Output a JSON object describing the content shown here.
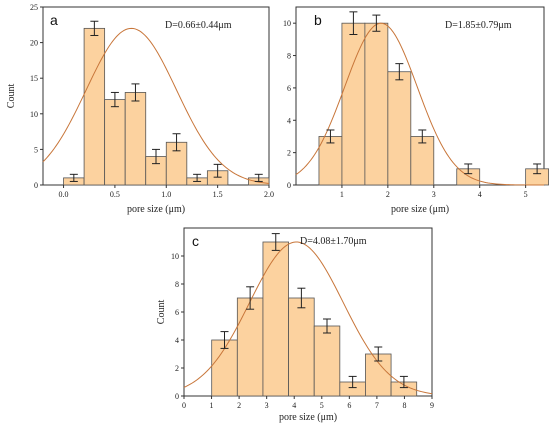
{
  "chart_data": [
    {
      "type": "bar",
      "panel_label": "a",
      "annotation": "D=0.66±0.44μm",
      "xlabel": "pore size (μm)",
      "ylabel": "Count",
      "xlim": [
        -0.2,
        2.0
      ],
      "ylim": [
        0,
        25
      ],
      "xticks": [
        0.0,
        0.5,
        1.0,
        1.5,
        2.0
      ],
      "xtick_labels": [
        "0.0",
        "0.5",
        "1.0",
        "1.5",
        "2.0"
      ],
      "yticks": [
        0,
        5,
        10,
        15,
        20,
        25
      ],
      "bin_width": 0.2,
      "bin_centers": [
        0.1,
        0.3,
        0.5,
        0.7,
        0.9,
        1.1,
        1.3,
        1.5,
        1.9
      ],
      "values": [
        1,
        22,
        12,
        13,
        4,
        6,
        1,
        2,
        1
      ],
      "errors": [
        0.5,
        1.0,
        1.0,
        1.2,
        1.0,
        1.2,
        0.5,
        0.9,
        0.5
      ],
      "fit": {
        "type": "gaussian",
        "mean": 0.66,
        "sd": 0.44,
        "peak": 22
      },
      "colors": {
        "bar": "#fcd29f",
        "bar_edge": "#555555",
        "fit": "#c8763a"
      }
    },
    {
      "type": "bar",
      "panel_label": "b",
      "annotation": "D=1.85±0.79μm",
      "xlabel": "pore size (μm)",
      "ylabel": "",
      "xlim": [
        0,
        5.4
      ],
      "ylim": [
        0,
        11
      ],
      "xticks": [
        1,
        2,
        3,
        4,
        5
      ],
      "xtick_labels": [
        "1",
        "2",
        "3",
        "4",
        "5"
      ],
      "yticks": [
        0,
        2,
        4,
        6,
        8,
        10
      ],
      "bin_width": 0.5,
      "bin_centers": [
        0.75,
        1.25,
        1.75,
        2.25,
        2.75,
        3.75,
        5.25
      ],
      "values": [
        3,
        10,
        10,
        7,
        3,
        1,
        1
      ],
      "errors": [
        0.4,
        0.7,
        0.5,
        0.5,
        0.4,
        0.3,
        0.3
      ],
      "fit": {
        "type": "gaussian",
        "mean": 1.85,
        "sd": 0.79,
        "peak": 10
      },
      "colors": {
        "bar": "#fcd29f",
        "bar_edge": "#555555",
        "fit": "#c8763a"
      }
    },
    {
      "type": "bar",
      "panel_label": "c",
      "annotation": "D=4.08±1.70μm",
      "xlabel": "pore size (μm)",
      "ylabel": "Count",
      "xlim": [
        0,
        9
      ],
      "ylim": [
        0,
        12
      ],
      "xticks": [
        0,
        1,
        2,
        3,
        4,
        5,
        6,
        7,
        8,
        9
      ],
      "xtick_labels": [
        "0",
        "1",
        "2",
        "3",
        "4",
        "5",
        "6",
        "7",
        "8",
        "9"
      ],
      "yticks": [
        0,
        2,
        4,
        6,
        8,
        10
      ],
      "bin_width": 0.93,
      "bin_centers": [
        1.47,
        2.4,
        3.33,
        4.26,
        5.19,
        6.12,
        7.05,
        7.98
      ],
      "values": [
        4,
        7,
        11,
        7,
        5,
        1,
        3,
        1
      ],
      "errors": [
        0.6,
        0.8,
        0.6,
        0.7,
        0.5,
        0.4,
        0.5,
        0.4
      ],
      "fit": {
        "type": "gaussian",
        "mean": 4.08,
        "sd": 1.7,
        "peak": 11
      },
      "colors": {
        "bar": "#fcd29f",
        "bar_edge": "#555555",
        "fit": "#c8763a"
      }
    }
  ]
}
